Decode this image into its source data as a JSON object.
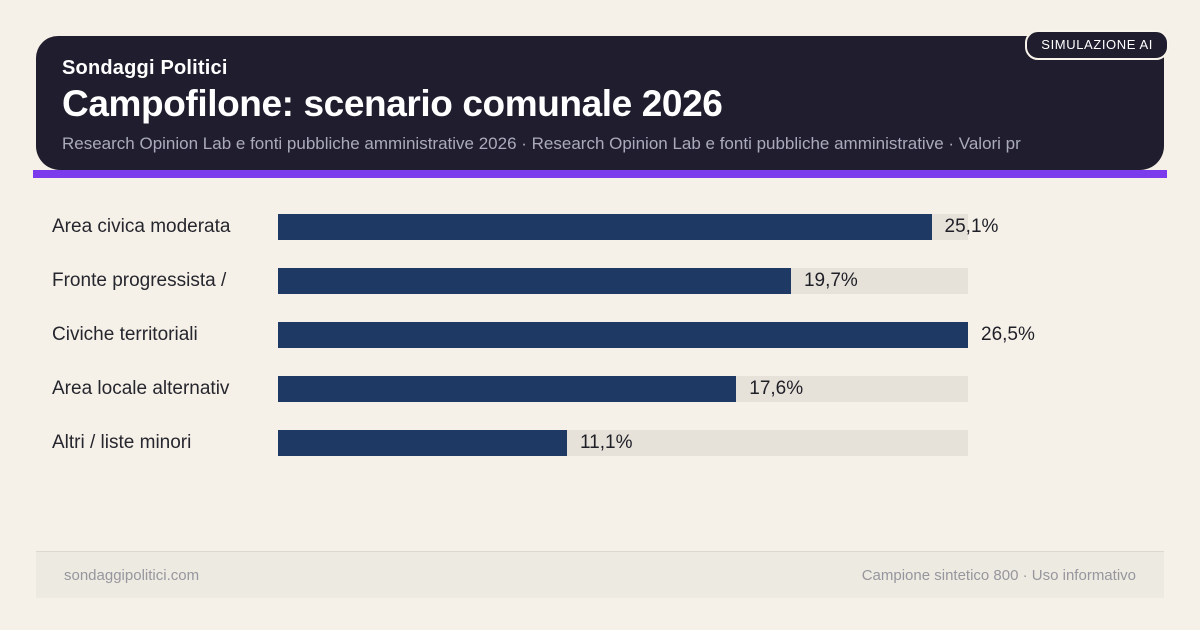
{
  "badge": {
    "label": "SIMULAZIONE AI"
  },
  "header": {
    "kicker": "Sondaggi Politici",
    "title": "Campofilone: scenario comunale 2026",
    "subtitle": "Research Opinion Lab e fonti pubbliche amministrative 2026 · Research Opinion Lab e fonti pubbliche amministrative · Valori pr",
    "bg_color": "#201d2e",
    "accent_color": "#7c3aed"
  },
  "chart_data": {
    "type": "bar",
    "orientation": "horizontal",
    "title": "Campofilone: scenario comunale 2026",
    "categories": [
      "Area civica moderata",
      "Fronte progressista /",
      "Civiche territoriali",
      "Area locale alternativ",
      "Altri / liste minori"
    ],
    "values": [
      25.1,
      19.7,
      26.5,
      17.6,
      11.1
    ],
    "value_labels": [
      "25,1%",
      "19,7%",
      "26,5%",
      "17,6%",
      "11,1%"
    ],
    "scale_max": 26.5,
    "xlabel": "",
    "ylabel": "",
    "legend": false,
    "grid": false,
    "bar_color": "#1e3a64",
    "track_color": "#e7e2d9"
  },
  "footer": {
    "left": "sondaggipolitici.com",
    "right": "Campione sintetico 800 · Uso informativo"
  }
}
